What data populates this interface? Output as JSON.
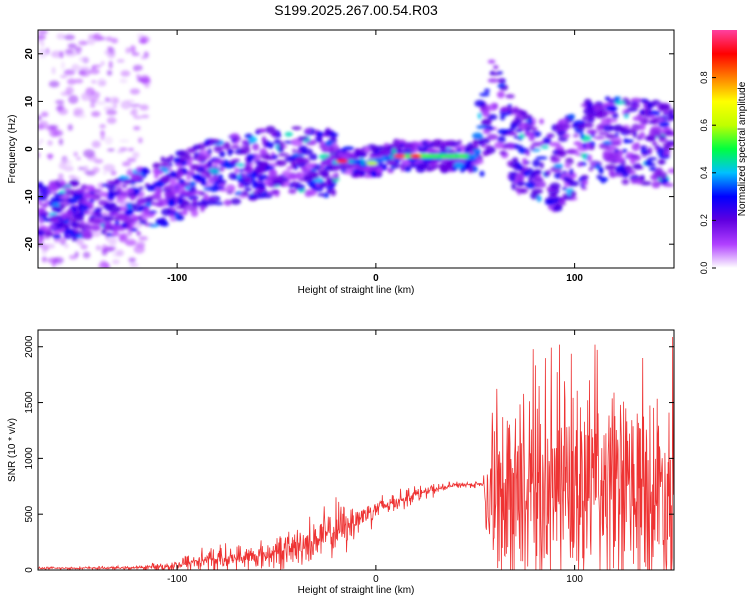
{
  "title": "S199.2025.267.00.54.R03",
  "colors": {
    "purple": "#8a2be2",
    "red": "#ee3333",
    "axis": "#000000"
  },
  "chart_data": [
    {
      "type": "heatmap",
      "xlabel": "Height of straight line (km)",
      "ylabel": "Frequency (Hz)",
      "xlim": [
        -170,
        150
      ],
      "ylim": [
        -25,
        25
      ],
      "x_ticks": [
        -100,
        0,
        100
      ],
      "x_tick_labels": [
        "-100",
        "0",
        "100"
      ],
      "y_ticks": [
        -20,
        -10,
        0,
        10,
        20
      ],
      "y_tick_labels": [
        "-20",
        "-10",
        "0",
        "10",
        "20"
      ],
      "ridge": [
        {
          "x": -160,
          "y": -13
        },
        {
          "x": -140,
          "y": -13
        },
        {
          "x": -120,
          "y": -11
        },
        {
          "x": -100,
          "y": -8
        },
        {
          "x": -80,
          "y": -5
        },
        {
          "x": -60,
          "y": -3
        },
        {
          "x": -40,
          "y": -2.5
        },
        {
          "x": -25,
          "y": -3
        },
        {
          "x": -15,
          "y": -2.5
        },
        {
          "x": -5,
          "y": -3
        },
        {
          "x": 5,
          "y": -2
        },
        {
          "x": 10,
          "y": -1.5
        },
        {
          "x": 30,
          "y": -1.5
        },
        {
          "x": 50,
          "y": -1.5
        },
        {
          "x": 55,
          "y": 5
        },
        {
          "x": 60,
          "y": 12
        },
        {
          "x": 70,
          "y": 0
        },
        {
          "x": 90,
          "y": -4
        },
        {
          "x": 110,
          "y": 2
        },
        {
          "x": 130,
          "y": 2
        },
        {
          "x": 150,
          "y": 1
        }
      ],
      "peak_band": {
        "x_start": 10,
        "x_end": 48,
        "y": -1.5
      },
      "colorbar": {
        "label": "Normalized spectral amplitude",
        "range": [
          0,
          1
        ],
        "ticks": [
          0.0,
          0.2,
          0.4,
          0.6,
          0.8
        ],
        "tick_labels": [
          "0.0",
          "0.2",
          "0.4",
          "0.6",
          "0.8"
        ],
        "stops": [
          "#ffffff",
          "#b040ff",
          "#6000e0",
          "#0000ff",
          "#00c0ff",
          "#00ff40",
          "#c0ff00",
          "#ffff00",
          "#ff8000",
          "#ff0000",
          "#ff40a0"
        ]
      }
    },
    {
      "type": "line",
      "xlabel": "Height of straight line (km)",
      "ylabel": "SNR (10 * v/v)",
      "xlim": [
        -170,
        150
      ],
      "ylim": [
        0,
        2150
      ],
      "x_ticks": [
        -100,
        0,
        100
      ],
      "x_tick_labels": [
        "-100",
        "0",
        "100"
      ],
      "y_ticks": [
        0,
        500,
        1000,
        1500,
        2000
      ],
      "y_tick_labels": [
        "0",
        "500",
        "1000",
        "1500",
        "2000"
      ],
      "envelope": [
        {
          "x": -170,
          "base": 15,
          "amp": 15
        },
        {
          "x": -120,
          "base": 20,
          "amp": 20
        },
        {
          "x": -100,
          "base": 40,
          "amp": 80
        },
        {
          "x": -90,
          "base": 80,
          "amp": 180
        },
        {
          "x": -60,
          "base": 120,
          "amp": 160
        },
        {
          "x": -40,
          "base": 200,
          "amp": 250
        },
        {
          "x": -20,
          "base": 350,
          "amp": 350
        },
        {
          "x": -10,
          "base": 450,
          "amp": 250
        },
        {
          "x": 0,
          "base": 550,
          "amp": 150
        },
        {
          "x": 20,
          "base": 680,
          "amp": 100
        },
        {
          "x": 40,
          "base": 760,
          "amp": 40
        },
        {
          "x": 54,
          "base": 770,
          "amp": 40
        },
        {
          "x": 56,
          "base": 700,
          "amp": 800
        },
        {
          "x": 70,
          "base": 700,
          "amp": 1000
        },
        {
          "x": 100,
          "base": 700,
          "amp": 1100
        },
        {
          "x": 150,
          "base": 700,
          "amp": 1100
        }
      ],
      "max_value": 2150
    }
  ]
}
